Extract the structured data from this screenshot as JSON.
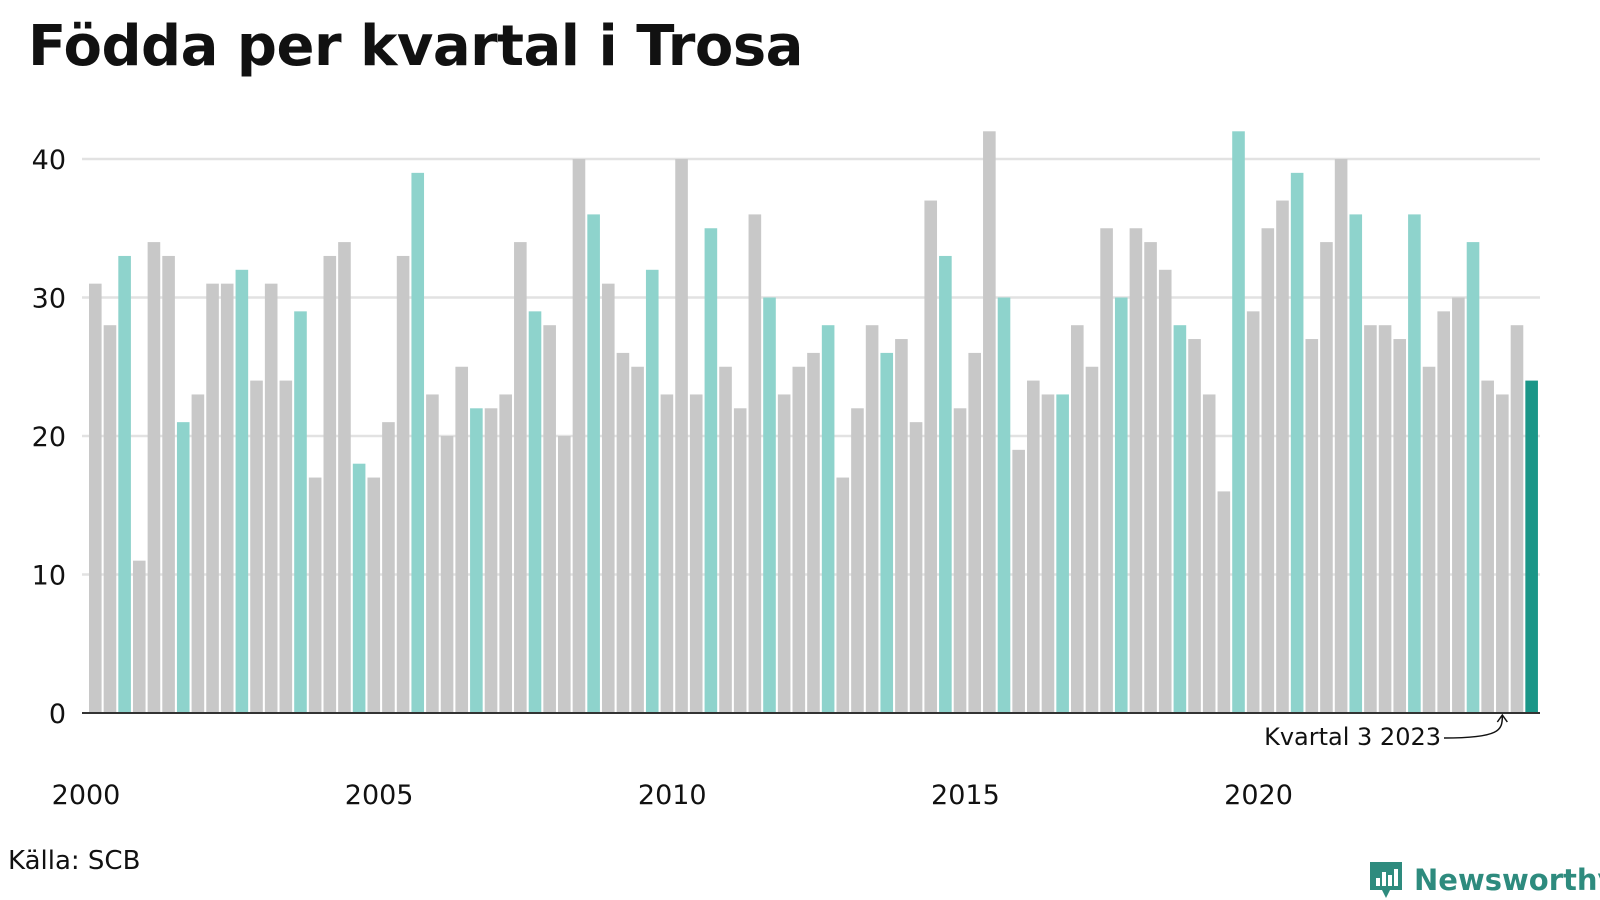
{
  "title": "Födda per kvartal i Trosa",
  "source": "Källa: SCB",
  "brand": "Newsworthy",
  "colors": {
    "other_quarter": "#c8c8c8",
    "q3": "#8ed3cc",
    "latest": "#1a9688",
    "grid": "#e2e2e2",
    "axis": "#333333",
    "brand": "#2e8b7e"
  },
  "chart_data": {
    "type": "bar",
    "xlabel": "",
    "ylabel": "",
    "ylim": [
      0,
      42
    ],
    "yticks": [
      0,
      10,
      20,
      30,
      40
    ],
    "x_tick_labels": [
      "2000",
      "2005",
      "2010",
      "2015",
      "2020"
    ],
    "first_year": 2000,
    "annotation": "Kvartal 3 2023",
    "values": [
      31,
      28,
      33,
      11,
      34,
      33,
      21,
      23,
      31,
      31,
      32,
      24,
      31,
      24,
      29,
      17,
      33,
      34,
      18,
      17,
      21,
      33,
      39,
      23,
      20,
      25,
      22,
      22,
      23,
      34,
      29,
      28,
      20,
      40,
      36,
      31,
      26,
      25,
      32,
      23,
      40,
      23,
      35,
      25,
      22,
      36,
      30,
      23,
      25,
      26,
      28,
      17,
      22,
      28,
      26,
      27,
      21,
      37,
      33,
      22,
      26,
      42,
      30,
      19,
      24,
      23,
      23,
      28,
      25,
      35,
      30,
      35,
      34,
      32,
      28,
      27,
      23,
      16,
      42,
      29,
      35,
      37,
      39,
      27,
      34,
      40,
      36,
      28,
      28,
      27,
      36,
      25,
      29,
      30,
      34,
      24,
      23,
      28,
      24
    ]
  }
}
